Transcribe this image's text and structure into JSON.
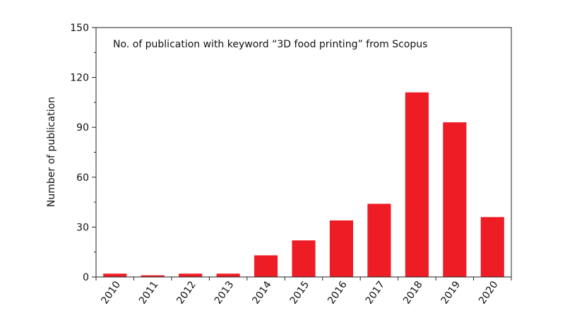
{
  "chart_data": {
    "type": "bar",
    "title": "",
    "annotation": "No. of publication with keyword “3D food printing” from Scopus",
    "xlabel": "",
    "ylabel": "Number of publication",
    "categories": [
      "2010",
      "2011",
      "2012",
      "2013",
      "2014",
      "2015",
      "2016",
      "2017",
      "2018",
      "2019",
      "2020"
    ],
    "values": [
      2,
      1,
      2,
      2,
      13,
      22,
      34,
      44,
      111,
      93,
      36
    ],
    "ylim": [
      0,
      150
    ],
    "yticks": [
      0,
      30,
      60,
      90,
      120,
      150
    ],
    "bar_color": "#ee1c25",
    "grid": false,
    "legend": "none"
  }
}
